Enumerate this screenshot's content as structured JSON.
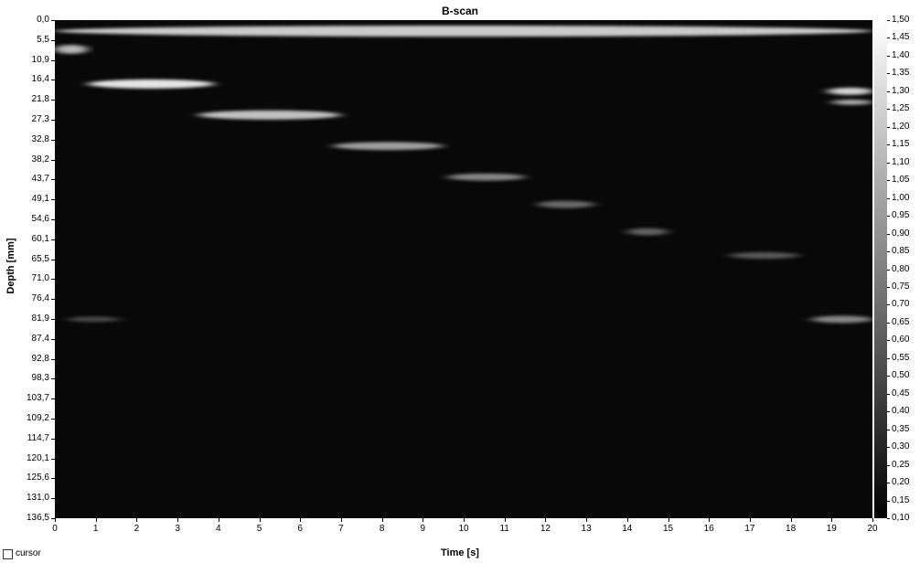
{
  "chart_data": {
    "type": "heatmap",
    "title": "B-scan",
    "xlabel": "Time [s]",
    "ylabel": "Depth [mm]",
    "xlim": [
      0,
      20
    ],
    "ylim": [
      0,
      136.5
    ],
    "x_ticks": [
      "0",
      "1",
      "2",
      "3",
      "4",
      "5",
      "6",
      "7",
      "8",
      "9",
      "10",
      "11",
      "12",
      "13",
      "14",
      "15",
      "16",
      "17",
      "18",
      "19",
      "20"
    ],
    "y_ticks": [
      "0,0",
      "5,5",
      "10,9",
      "16,4",
      "21,8",
      "27,3",
      "32,8",
      "38,2",
      "43,7",
      "49,1",
      "54,6",
      "60,1",
      "65,5",
      "71,0",
      "76,4",
      "81,9",
      "87,4",
      "92,8",
      "98,3",
      "103,7",
      "109,2",
      "114,7",
      "120,1",
      "125,6",
      "131,0",
      "136,5"
    ],
    "colorbar": {
      "range": [
        0.1,
        1.5
      ],
      "ticks": [
        "1,50",
        "1,45",
        "1,40",
        "1,35",
        "1,30",
        "1,25",
        "1,20",
        "1,15",
        "1,10",
        "1,05",
        "1,00",
        "0,95",
        "0,90",
        "0,85",
        "0,80",
        "0,75",
        "0,70",
        "0,65",
        "0,60",
        "0,55",
        "0,50",
        "0,45",
        "0,40",
        "0,35",
        "0,30",
        "0,25",
        "0,20",
        "0,15",
        "0,10"
      ]
    },
    "reflections": [
      {
        "t_start": 0.0,
        "t_end": 20.0,
        "depth": 3.0,
        "depth_width": 3.0,
        "intensity": 1.2
      },
      {
        "t_start": 0.0,
        "t_end": 0.8,
        "depth": 8.0,
        "depth_width": 2.5,
        "intensity": 1.1
      },
      {
        "t_start": 0.8,
        "t_end": 3.9,
        "depth": 17.5,
        "depth_width": 2.5,
        "intensity": 1.35
      },
      {
        "t_start": 3.5,
        "t_end": 7.0,
        "depth": 26.0,
        "depth_width": 2.5,
        "intensity": 1.15
      },
      {
        "t_start": 6.8,
        "t_end": 9.5,
        "depth": 34.5,
        "depth_width": 2.2,
        "intensity": 0.95
      },
      {
        "t_start": 9.6,
        "t_end": 11.5,
        "depth": 43.0,
        "depth_width": 2.0,
        "intensity": 0.8
      },
      {
        "t_start": 11.8,
        "t_end": 13.2,
        "depth": 50.5,
        "depth_width": 2.0,
        "intensity": 0.65
      },
      {
        "t_start": 14.0,
        "t_end": 15.0,
        "depth": 58.0,
        "depth_width": 2.0,
        "intensity": 0.6
      },
      {
        "t_start": 16.5,
        "t_end": 18.2,
        "depth": 64.5,
        "depth_width": 1.8,
        "intensity": 0.55
      },
      {
        "t_start": 0.3,
        "t_end": 1.6,
        "depth": 82.0,
        "depth_width": 1.5,
        "intensity": 0.45
      },
      {
        "t_start": 18.5,
        "t_end": 20.0,
        "depth": 82.0,
        "depth_width": 2.0,
        "intensity": 0.8
      },
      {
        "t_start": 18.9,
        "t_end": 20.0,
        "depth": 19.5,
        "depth_width": 2.0,
        "intensity": 1.25
      },
      {
        "t_start": 19.0,
        "t_end": 20.0,
        "depth": 22.5,
        "depth_width": 1.5,
        "intensity": 1.0
      }
    ]
  },
  "controls": {
    "cursor_label": "cursor",
    "cursor_checked": false
  }
}
